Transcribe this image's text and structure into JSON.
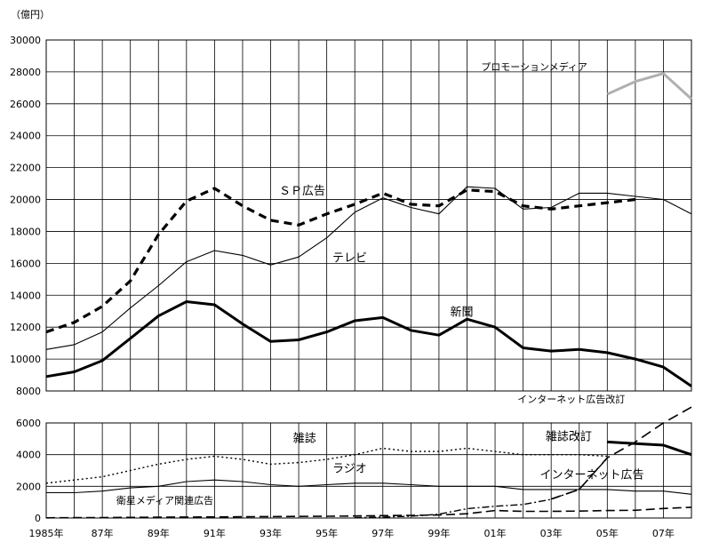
{
  "chart_data": {
    "type": "line",
    "unit_label": "（億円）",
    "x": [
      1985,
      1986,
      1987,
      1988,
      1989,
      1990,
      1991,
      1992,
      1993,
      1994,
      1995,
      1996,
      1997,
      1998,
      1999,
      2000,
      2001,
      2002,
      2003,
      2004,
      2005,
      2006,
      2007,
      2008
    ],
    "xlim": [
      1985,
      2008
    ],
    "x_tick_labels": [
      {
        "x": 1985,
        "label": "1985年"
      },
      {
        "x": 1987,
        "label": "87年"
      },
      {
        "x": 1989,
        "label": "89年"
      },
      {
        "x": 1991,
        "label": "91年"
      },
      {
        "x": 1993,
        "label": "93年"
      },
      {
        "x": 1995,
        "label": "95年"
      },
      {
        "x": 1997,
        "label": "97年"
      },
      {
        "x": 1999,
        "label": "99年"
      },
      {
        "x": 2001,
        "label": "01年"
      },
      {
        "x": 2003,
        "label": "03年"
      },
      {
        "x": 2005,
        "label": "05年"
      },
      {
        "x": 2007,
        "label": "07年"
      }
    ],
    "y_lower": {
      "range": [
        0,
        6000
      ],
      "ticks": [
        0,
        2000,
        4000,
        6000
      ],
      "tick_labels": [
        "0",
        "2000",
        "4000",
        "6000"
      ]
    },
    "y_upper": {
      "range": [
        8000,
        30000
      ],
      "ticks": [
        8000,
        10000,
        12000,
        14000,
        16000,
        18000,
        20000,
        22000,
        24000,
        26000,
        28000,
        30000
      ],
      "tick_labels": [
        "8000",
        "10000",
        "12000",
        "14000",
        "16000",
        "18000",
        "20000",
        "22000",
        "24000",
        "26000",
        "28000",
        "30000"
      ]
    },
    "grid": true,
    "series": [
      {
        "name": "プロモーションメディア",
        "panel": "upper",
        "style": "gray-thick",
        "color": "#b0b0b0",
        "x": [
          2005,
          2006,
          2007,
          2008
        ],
        "values": [
          26600,
          27400,
          27900,
          26300
        ],
        "label_x": 2000.5,
        "label_y": 28100
      },
      {
        "name": "ＳＰ広告",
        "panel": "upper",
        "style": "thick-dashed",
        "color": "#000000",
        "x": [
          1985,
          1986,
          1987,
          1988,
          1989,
          1990,
          1991,
          1992,
          1993,
          1994,
          1995,
          1996,
          1997,
          1998,
          1999,
          2000,
          2001,
          2002,
          2003,
          2004,
          2005,
          2006
        ],
        "values": [
          11700,
          12300,
          13300,
          14900,
          17800,
          19900,
          20700,
          19600,
          18700,
          18400,
          19100,
          19700,
          20400,
          19700,
          19600,
          20600,
          20500,
          19600,
          19400,
          19600,
          19800,
          20000
        ],
        "label_x": 1993.3,
        "label_y": 20300
      },
      {
        "name": "テレビ",
        "panel": "upper",
        "style": "thin",
        "color": "#000000",
        "x": [
          1985,
          1986,
          1987,
          1988,
          1989,
          1990,
          1991,
          1992,
          1993,
          1994,
          1995,
          1996,
          1997,
          1998,
          1999,
          2000,
          2001,
          2002,
          2003,
          2004,
          2005,
          2006,
          2007,
          2008
        ],
        "values": [
          10600,
          10900,
          11700,
          13200,
          14600,
          16100,
          16800,
          16500,
          15900,
          16400,
          17600,
          19200,
          20100,
          19500,
          19100,
          20800,
          20700,
          19400,
          19500,
          20400,
          20400,
          20200,
          20000,
          19100
        ],
        "label_x": 1995.2,
        "label_y": 16100
      },
      {
        "name": "新聞",
        "panel": "upper",
        "style": "thick",
        "color": "#000000",
        "x": [
          1985,
          1986,
          1987,
          1988,
          1989,
          1990,
          1991,
          1992,
          1993,
          1994,
          1995,
          1996,
          1997,
          1998,
          1999,
          2000,
          2001,
          2002,
          2003,
          2004,
          2005,
          2006,
          2007,
          2008
        ],
        "values": [
          8900,
          9200,
          9900,
          11300,
          12700,
          13600,
          13400,
          12200,
          11100,
          11200,
          11700,
          12400,
          12600,
          11800,
          11500,
          12500,
          12000,
          10700,
          10500,
          10600,
          10400,
          10000,
          9500,
          8300
        ],
        "label_x": 1999.4,
        "label_y": 12700
      },
      {
        "name": "雑誌",
        "panel": "lower",
        "style": "dotted",
        "color": "#000000",
        "x": [
          1985,
          1986,
          1987,
          1988,
          1989,
          1990,
          1991,
          1992,
          1993,
          1994,
          1995,
          1996,
          1997,
          1998,
          1999,
          2000,
          2001,
          2002,
          2003,
          2004,
          2005
        ],
        "values": [
          2200,
          2400,
          2600,
          3000,
          3400,
          3700,
          3900,
          3700,
          3400,
          3500,
          3700,
          4000,
          4400,
          4200,
          4200,
          4400,
          4200,
          4000,
          4000,
          4000,
          3900
        ],
        "label_x": 1993.8,
        "label_y": 4800
      },
      {
        "name": "雑誌改訂",
        "panel": "lower",
        "style": "thick",
        "color": "#000000",
        "x": [
          2005,
          2006,
          2007,
          2008
        ],
        "values": [
          4800,
          4700,
          4600,
          4000
        ],
        "label_x": 2002.8,
        "label_y": 4900
      },
      {
        "name": "ラジオ",
        "panel": "lower",
        "style": "thin",
        "color": "#000000",
        "x": [
          1985,
          1986,
          1987,
          1988,
          1989,
          1990,
          1991,
          1992,
          1993,
          1994,
          1995,
          1996,
          1997,
          1998,
          1999,
          2000,
          2001,
          2002,
          2003,
          2004,
          2005,
          2006,
          2007,
          2008
        ],
        "values": [
          1600,
          1600,
          1700,
          1900,
          2000,
          2300,
          2400,
          2300,
          2100,
          2000,
          2100,
          2200,
          2200,
          2100,
          2000,
          2000,
          2000,
          1800,
          1800,
          1800,
          1800,
          1700,
          1700,
          1500
        ],
        "label_x": 1995.2,
        "label_y": 2900
      },
      {
        "name": "インターネット広告改訂",
        "panel": "lower",
        "style": "long-dashed",
        "color": "#000000",
        "x": [
          2003,
          2004,
          2005,
          2006,
          2007,
          2008
        ],
        "values": [
          1200,
          1800,
          3800,
          4800,
          6000,
          7000
        ],
        "label_x": 2001.8,
        "label_y": 7300
      },
      {
        "name": "インターネット広告",
        "panel": "lower",
        "style": "dash-dot",
        "color": "#000000",
        "x": [
          1996,
          1997,
          1998,
          1999,
          2000,
          2001,
          2002,
          2003,
          2004,
          2005
        ],
        "values": [
          20,
          60,
          110,
          240,
          590,
          740,
          850,
          1180,
          1810,
          3780
        ],
        "label_x": 2002.6,
        "label_y": 2500
      },
      {
        "name": "衛星メディア関連広告",
        "panel": "lower",
        "style": "dashed",
        "color": "#000000",
        "x": [
          1985,
          1986,
          1987,
          1988,
          1989,
          1990,
          1991,
          1992,
          1993,
          1994,
          1995,
          1996,
          1997,
          1998,
          1999,
          2000,
          2001,
          2002,
          2003,
          2004,
          2005,
          2006,
          2007,
          2008
        ],
        "values": [
          10,
          20,
          30,
          40,
          50,
          60,
          70,
          80,
          90,
          100,
          110,
          130,
          150,
          170,
          190,
          270,
          470,
          420,
          420,
          440,
          470,
          490,
          600,
          680
        ],
        "label_x": 1987.5,
        "label_y": 900
      }
    ]
  }
}
